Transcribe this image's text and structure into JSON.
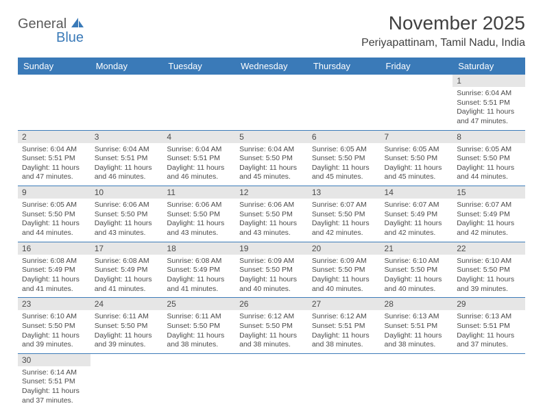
{
  "logo": {
    "part1": "General",
    "part2": "Blue"
  },
  "title": "November 2025",
  "subtitle": "Periyapattinam, Tamil Nadu, India",
  "colors": {
    "header_bg": "#3a7ab8",
    "header_text": "#ffffff",
    "daynum_bg": "#e6e6e6",
    "text": "#4a4a4a",
    "rule": "#3a7ab8"
  },
  "fonts": {
    "title": 28,
    "subtitle": 16,
    "weekday": 13,
    "daynum": 12,
    "cell": 10.5
  },
  "weekdays": [
    "Sunday",
    "Monday",
    "Tuesday",
    "Wednesday",
    "Thursday",
    "Friday",
    "Saturday"
  ],
  "weeks": [
    [
      null,
      null,
      null,
      null,
      null,
      null,
      {
        "n": "1",
        "sr": "6:04 AM",
        "ss": "5:51 PM",
        "dl": "11 hours and 47 minutes."
      }
    ],
    [
      {
        "n": "2",
        "sr": "6:04 AM",
        "ss": "5:51 PM",
        "dl": "11 hours and 47 minutes."
      },
      {
        "n": "3",
        "sr": "6:04 AM",
        "ss": "5:51 PM",
        "dl": "11 hours and 46 minutes."
      },
      {
        "n": "4",
        "sr": "6:04 AM",
        "ss": "5:51 PM",
        "dl": "11 hours and 46 minutes."
      },
      {
        "n": "5",
        "sr": "6:04 AM",
        "ss": "5:50 PM",
        "dl": "11 hours and 45 minutes."
      },
      {
        "n": "6",
        "sr": "6:05 AM",
        "ss": "5:50 PM",
        "dl": "11 hours and 45 minutes."
      },
      {
        "n": "7",
        "sr": "6:05 AM",
        "ss": "5:50 PM",
        "dl": "11 hours and 45 minutes."
      },
      {
        "n": "8",
        "sr": "6:05 AM",
        "ss": "5:50 PM",
        "dl": "11 hours and 44 minutes."
      }
    ],
    [
      {
        "n": "9",
        "sr": "6:05 AM",
        "ss": "5:50 PM",
        "dl": "11 hours and 44 minutes."
      },
      {
        "n": "10",
        "sr": "6:06 AM",
        "ss": "5:50 PM",
        "dl": "11 hours and 43 minutes."
      },
      {
        "n": "11",
        "sr": "6:06 AM",
        "ss": "5:50 PM",
        "dl": "11 hours and 43 minutes."
      },
      {
        "n": "12",
        "sr": "6:06 AM",
        "ss": "5:50 PM",
        "dl": "11 hours and 43 minutes."
      },
      {
        "n": "13",
        "sr": "6:07 AM",
        "ss": "5:50 PM",
        "dl": "11 hours and 42 minutes."
      },
      {
        "n": "14",
        "sr": "6:07 AM",
        "ss": "5:49 PM",
        "dl": "11 hours and 42 minutes."
      },
      {
        "n": "15",
        "sr": "6:07 AM",
        "ss": "5:49 PM",
        "dl": "11 hours and 42 minutes."
      }
    ],
    [
      {
        "n": "16",
        "sr": "6:08 AM",
        "ss": "5:49 PM",
        "dl": "11 hours and 41 minutes."
      },
      {
        "n": "17",
        "sr": "6:08 AM",
        "ss": "5:49 PM",
        "dl": "11 hours and 41 minutes."
      },
      {
        "n": "18",
        "sr": "6:08 AM",
        "ss": "5:49 PM",
        "dl": "11 hours and 41 minutes."
      },
      {
        "n": "19",
        "sr": "6:09 AM",
        "ss": "5:50 PM",
        "dl": "11 hours and 40 minutes."
      },
      {
        "n": "20",
        "sr": "6:09 AM",
        "ss": "5:50 PM",
        "dl": "11 hours and 40 minutes."
      },
      {
        "n": "21",
        "sr": "6:10 AM",
        "ss": "5:50 PM",
        "dl": "11 hours and 40 minutes."
      },
      {
        "n": "22",
        "sr": "6:10 AM",
        "ss": "5:50 PM",
        "dl": "11 hours and 39 minutes."
      }
    ],
    [
      {
        "n": "23",
        "sr": "6:10 AM",
        "ss": "5:50 PM",
        "dl": "11 hours and 39 minutes."
      },
      {
        "n": "24",
        "sr": "6:11 AM",
        "ss": "5:50 PM",
        "dl": "11 hours and 39 minutes."
      },
      {
        "n": "25",
        "sr": "6:11 AM",
        "ss": "5:50 PM",
        "dl": "11 hours and 38 minutes."
      },
      {
        "n": "26",
        "sr": "6:12 AM",
        "ss": "5:50 PM",
        "dl": "11 hours and 38 minutes."
      },
      {
        "n": "27",
        "sr": "6:12 AM",
        "ss": "5:51 PM",
        "dl": "11 hours and 38 minutes."
      },
      {
        "n": "28",
        "sr": "6:13 AM",
        "ss": "5:51 PM",
        "dl": "11 hours and 38 minutes."
      },
      {
        "n": "29",
        "sr": "6:13 AM",
        "ss": "5:51 PM",
        "dl": "11 hours and 37 minutes."
      }
    ],
    [
      {
        "n": "30",
        "sr": "6:14 AM",
        "ss": "5:51 PM",
        "dl": "11 hours and 37 minutes."
      },
      null,
      null,
      null,
      null,
      null,
      null
    ]
  ],
  "labels": {
    "sunrise": "Sunrise: ",
    "sunset": "Sunset: ",
    "daylight": "Daylight: "
  }
}
